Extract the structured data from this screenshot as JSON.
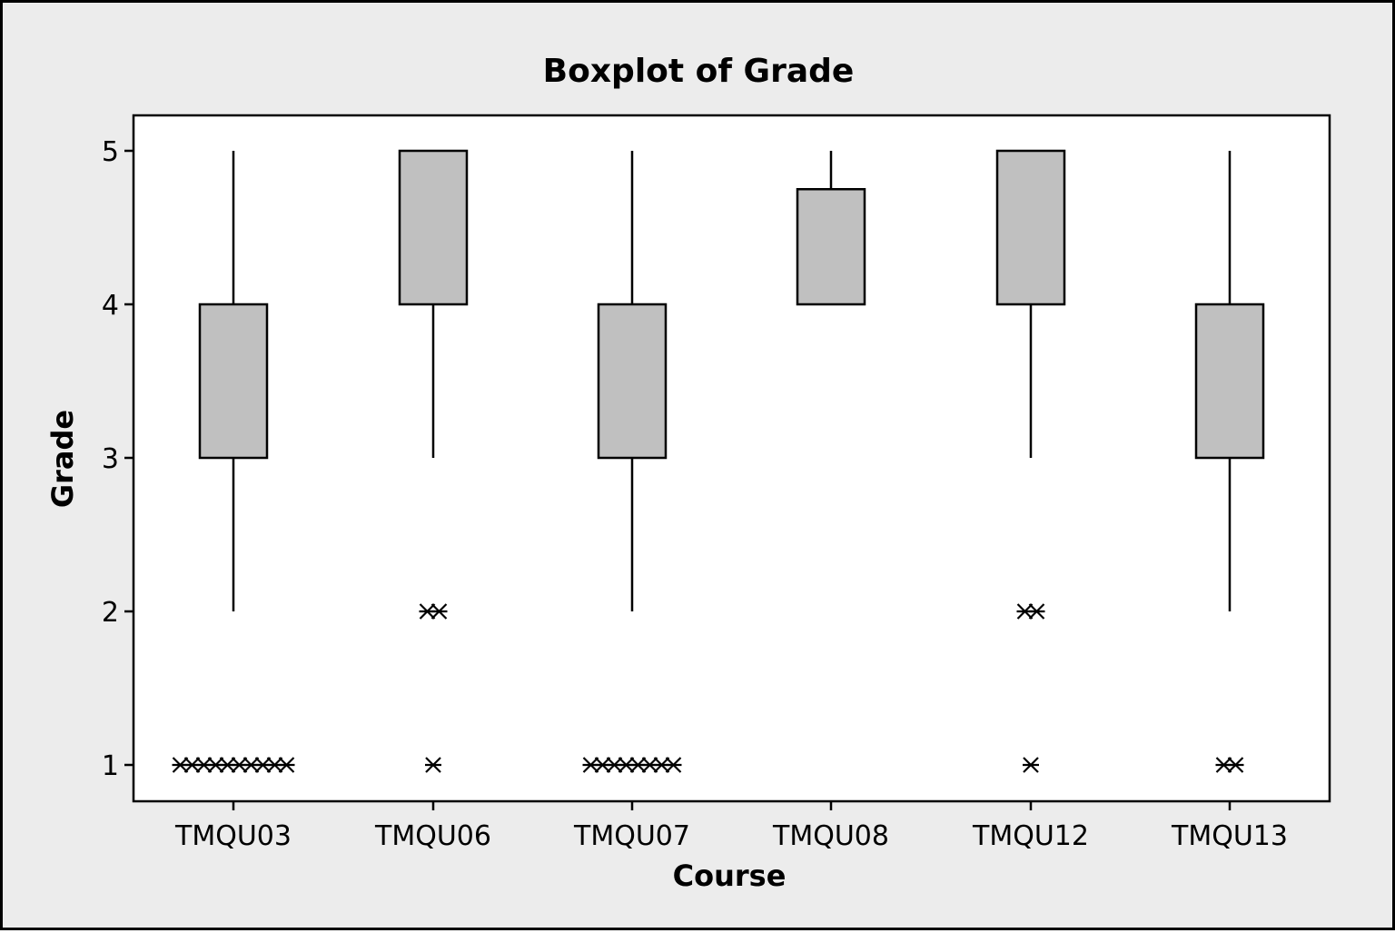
{
  "chart_data": {
    "type": "boxplot",
    "title": "Boxplot of Grade",
    "xlabel": "Course",
    "ylabel": "Grade",
    "ylim": [
      0.75,
      5.22
    ],
    "yticks": [
      "1",
      "2",
      "3",
      "4",
      "5"
    ],
    "categories": [
      "TMQU03",
      "TMQU06",
      "TMQU07",
      "TMQU08",
      "TMQU12",
      "TMQU13"
    ],
    "boxes": [
      {
        "category": "TMQU03",
        "q1": 3,
        "median": 3,
        "q3": 4,
        "whisker_low": 2,
        "whisker_high": 5,
        "outliers": [
          1,
          1,
          1,
          1,
          1,
          1,
          1,
          1,
          1,
          1
        ]
      },
      {
        "category": "TMQU06",
        "q1": 4,
        "median": 5,
        "q3": 5,
        "whisker_low": 3,
        "whisker_high": 5,
        "outliers": [
          2,
          2,
          1
        ]
      },
      {
        "category": "TMQU07",
        "q1": 3,
        "median": 3,
        "q3": 4,
        "whisker_low": 2,
        "whisker_high": 5,
        "outliers": [
          1,
          1,
          1,
          1,
          1,
          1,
          1,
          1
        ]
      },
      {
        "category": "TMQU08",
        "q1": 4,
        "median": 4,
        "q3": 4.75,
        "whisker_low": 4,
        "whisker_high": 5,
        "outliers": []
      },
      {
        "category": "TMQU12",
        "q1": 4,
        "median": 5,
        "q3": 5,
        "whisker_low": 3,
        "whisker_high": 5,
        "outliers": [
          2,
          2,
          1
        ]
      },
      {
        "category": "TMQU13",
        "q1": 3,
        "median": 3,
        "q3": 4,
        "whisker_low": 2,
        "whisker_high": 5,
        "outliers": [
          1,
          1
        ]
      }
    ],
    "grid": false,
    "box_fill": "#c0c0c0",
    "background": "#ececec",
    "plot_background": "#ffffff"
  }
}
